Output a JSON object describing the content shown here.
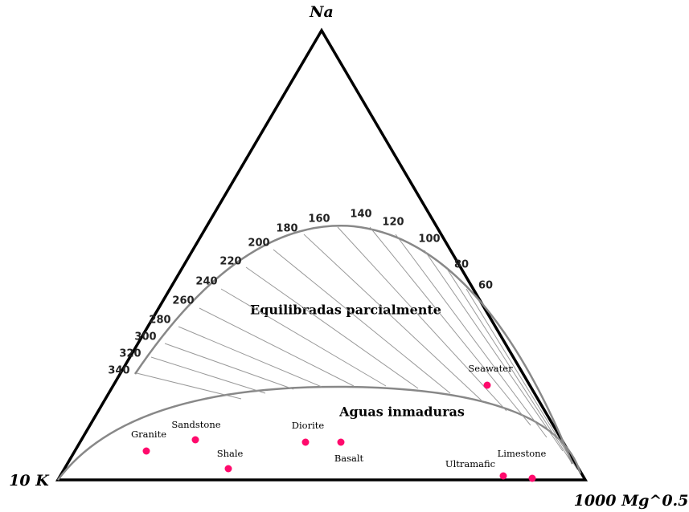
{
  "vertices": {
    "top": "Na",
    "left": "10 K",
    "right": "1000 Mg^0.5"
  },
  "isotherms": [
    "340",
    "320",
    "300",
    "280",
    "260",
    "240",
    "220",
    "200",
    "180",
    "160",
    "140",
    "120",
    "100",
    "80",
    "60"
  ],
  "regions": [
    "Equilibradas parcialmente",
    "Aguas inmaduras"
  ],
  "samples": [
    "Seawater",
    "Granite",
    "Sandstone",
    "Shale",
    "Diorite",
    "Basalt",
    "Ultramafic",
    "Limestone"
  ]
}
